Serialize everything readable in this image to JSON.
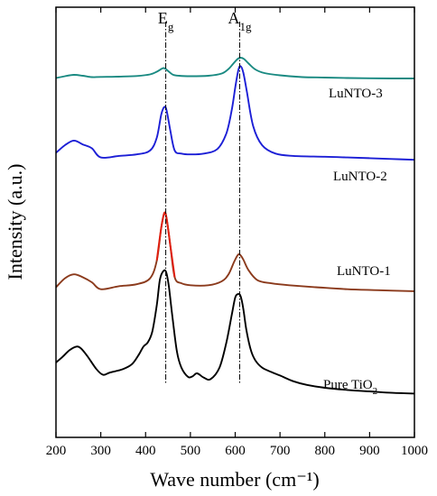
{
  "chart_data": {
    "type": "line",
    "xlabel": "Wave number (cm⁻¹)",
    "ylabel": "Intensity (a.u.)",
    "xlim": [
      200,
      1000
    ],
    "x_ticks": [
      "200",
      "300",
      "400",
      "500",
      "600",
      "700",
      "800",
      "900",
      "1000"
    ],
    "y_ticks": [],
    "grid": false,
    "reference_lines": [
      {
        "x": 445,
        "label": "E",
        "sub": "g"
      },
      {
        "x": 610,
        "label": "A",
        "sub": "1g"
      }
    ],
    "series": [
      {
        "name": "LuNTO-3",
        "label": "LuNTO-3",
        "color": "#1a8a82",
        "x": [
          200,
          220,
          240,
          260,
          280,
          300,
          340,
          380,
          410,
          425,
          435,
          440,
          445,
          452,
          462,
          475,
          500,
          540,
          570,
          585,
          595,
          605,
          612,
          620,
          630,
          645,
          665,
          700,
          750,
          800,
          850,
          900,
          950,
          1000
        ],
        "y": [
          0.3,
          0.7,
          1.0,
          0.8,
          0.5,
          0.55,
          0.6,
          0.75,
          1.1,
          1.7,
          2.3,
          2.5,
          2.3,
          1.7,
          1.0,
          0.8,
          0.7,
          0.8,
          1.3,
          2.3,
          3.4,
          4.5,
          4.8,
          4.5,
          3.5,
          2.2,
          1.4,
          0.9,
          0.5,
          0.4,
          0.3,
          0.25,
          0.2,
          0.2
        ]
      },
      {
        "name": "LuNTO-2",
        "label": "LuNTO-2",
        "color": "#1c1fd6",
        "x": [
          200,
          220,
          240,
          260,
          280,
          300,
          340,
          380,
          410,
          425,
          435,
          442,
          447,
          455,
          465,
          480,
          500,
          530,
          560,
          580,
          592,
          600,
          607,
          612,
          618,
          626,
          640,
          660,
          690,
          730,
          800,
          850,
          900,
          950,
          1000
        ],
        "y": [
          1.0,
          2.0,
          2.6,
          2.1,
          1.6,
          0.4,
          0.6,
          0.8,
          1.3,
          3.0,
          6.0,
          7.0,
          6.5,
          4.0,
          1.3,
          0.9,
          0.8,
          0.9,
          1.5,
          3.5,
          6.5,
          9.5,
          11.8,
          12.3,
          11.5,
          9.0,
          4.5,
          2.0,
          0.9,
          0.6,
          0.5,
          0.4,
          0.3,
          0.2,
          0.1
        ]
      },
      {
        "name": "LuNTO-1",
        "label": "LuNTO-1",
        "color": "#8b3a1c",
        "x": [
          200,
          220,
          240,
          260,
          280,
          300,
          340,
          380,
          410,
          425,
          435,
          442,
          447,
          455,
          465,
          480,
          500,
          540,
          570,
          585,
          597,
          605,
          610,
          618,
          630,
          650,
          680,
          720,
          780,
          850,
          920,
          1000
        ],
        "y": [
          0.5,
          1.4,
          1.8,
          1.5,
          1.0,
          0.3,
          0.6,
          0.8,
          1.4,
          3.2,
          6.5,
          8.0,
          7.4,
          4.8,
          1.5,
          0.9,
          0.7,
          0.7,
          1.1,
          1.8,
          3.0,
          3.7,
          3.8,
          3.3,
          2.2,
          1.2,
          0.9,
          0.7,
          0.5,
          0.3,
          0.2,
          0.1
        ],
        "highlight_color": "#e02010",
        "highlight_range": [
          415,
          475
        ]
      },
      {
        "name": "Pure TiO2",
        "label": "Pure TiO",
        "label_sub": "2",
        "color": "#000000",
        "x": [
          200,
          215,
          230,
          245,
          255,
          270,
          290,
          305,
          320,
          350,
          370,
          385,
          395,
          405,
          415,
          425,
          432,
          440,
          446,
          452,
          460,
          470,
          480,
          495,
          505,
          515,
          530,
          545,
          565,
          580,
          592,
          600,
          607,
          612,
          618,
          625,
          635,
          645,
          660,
          680,
          700,
          730,
          760,
          800,
          850,
          900,
          950,
          1000
        ],
        "y": [
          4.5,
          5.3,
          6.2,
          6.7,
          6.5,
          5.4,
          3.6,
          2.8,
          3.1,
          3.6,
          4.3,
          5.6,
          6.7,
          7.3,
          8.8,
          12.5,
          16.0,
          17.2,
          17.0,
          15.0,
          10.8,
          6.0,
          3.8,
          2.5,
          2.6,
          3.0,
          2.4,
          2.2,
          3.8,
          7.2,
          11.0,
          13.5,
          14.0,
          13.7,
          12.0,
          9.0,
          6.2,
          4.8,
          3.8,
          3.2,
          2.7,
          1.9,
          1.4,
          1.0,
          0.7,
          0.5,
          0.3,
          0.2
        ]
      }
    ]
  }
}
